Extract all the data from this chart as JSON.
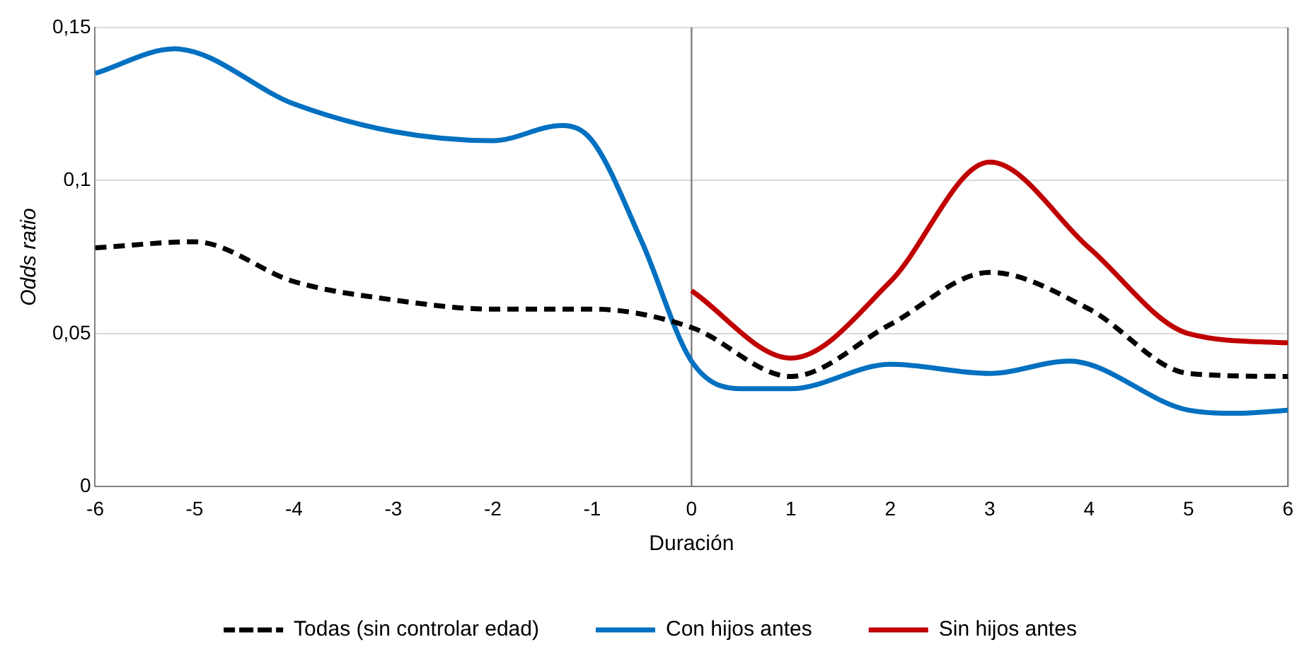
{
  "chart_data": {
    "type": "line",
    "xlabel": "Duración",
    "ylabel": "Odds ratio",
    "xlim": [
      -6,
      6
    ],
    "xticks": [
      -6,
      -5,
      -4,
      -3,
      -2,
      -1,
      0,
      1,
      2,
      3,
      4,
      5,
      6
    ],
    "ylim": [
      0,
      0.15
    ],
    "yticks": [
      {
        "value": 0,
        "label": "0"
      },
      {
        "value": 0.05,
        "label": "0,05"
      },
      {
        "value": 0.1,
        "label": "0,1"
      },
      {
        "value": 0.15,
        "label": "0,15"
      }
    ],
    "grid": "y",
    "legend": "bottom",
    "marker": "none",
    "ref_lines": [
      {
        "axis": "x",
        "value": 0,
        "label": null,
        "color": "#808080"
      },
      {
        "axis": "x",
        "value": 6,
        "label": null,
        "color": "#808080"
      }
    ],
    "series": [
      {
        "name": "Todas (sin controlar edad)",
        "color": "#000000",
        "line_style": "dashed",
        "x": [
          -6,
          -5,
          -4,
          -3,
          -2,
          -1,
          0,
          1,
          2,
          3,
          4,
          5,
          6
        ],
        "values": [
          0.078,
          0.08,
          0.067,
          0.061,
          0.058,
          0.058,
          0.052,
          0.036,
          0.053,
          0.07,
          0.058,
          0.037,
          0.036
        ]
      },
      {
        "name": "Con hijos antes",
        "color": "#0070c0",
        "line_style": "solid",
        "x": [
          -6,
          -5.2,
          -4,
          -3,
          -2,
          -1.3,
          -1,
          -0.5,
          0,
          0.5,
          1,
          2,
          3,
          3.8,
          5,
          5.5,
          6
        ],
        "values": [
          0.135,
          0.143,
          0.125,
          0.116,
          0.113,
          0.118,
          0.113,
          0.08,
          0.041,
          0.032,
          0.032,
          0.04,
          0.037,
          0.041,
          0.025,
          0.024,
          0.025
        ]
      },
      {
        "name": "Sin hijos antes",
        "color": "#c00000",
        "line_style": "solid",
        "x": [
          0,
          1,
          2,
          3,
          4,
          5,
          6
        ],
        "values": [
          0.064,
          0.042,
          0.067,
          0.106,
          0.078,
          0.05,
          0.047
        ]
      }
    ]
  }
}
